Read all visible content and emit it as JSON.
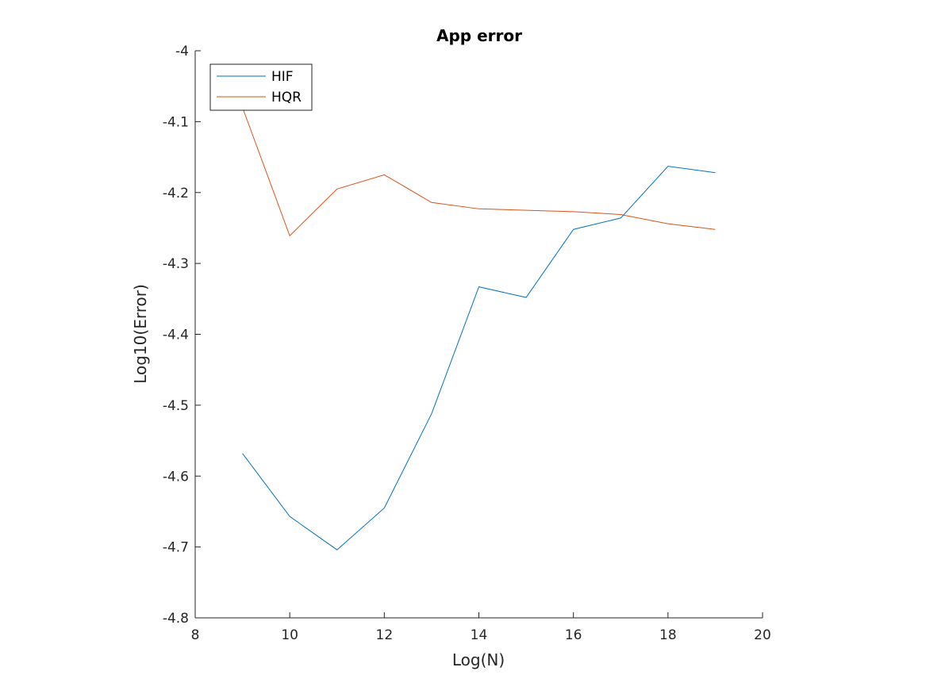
{
  "chart_data": {
    "type": "line",
    "title": "App error",
    "xlabel": "Log(N)",
    "ylabel": "Log10(Error)",
    "xlim": [
      8,
      20
    ],
    "ylim": [
      -4.8,
      -4
    ],
    "xticks": [
      8,
      10,
      12,
      14,
      16,
      18,
      20
    ],
    "xtick_labels": [
      "8",
      "10",
      "12",
      "14",
      "16",
      "18",
      "20"
    ],
    "yticks": [
      -4,
      -4.1,
      -4.2,
      -4.3,
      -4.4,
      -4.5,
      -4.6,
      -4.7,
      -4.8
    ],
    "ytick_labels": [
      "-4",
      "-4.1",
      "-4.2",
      "-4.3",
      "-4.4",
      "-4.5",
      "-4.6",
      "-4.7",
      "-4.8"
    ],
    "grid": false,
    "legend_position": "top-left",
    "x": [
      9,
      10,
      11,
      12,
      13,
      14,
      15,
      16,
      17,
      18,
      19
    ],
    "series": [
      {
        "name": "HIF",
        "color": "#0072BD",
        "values": [
          -4.568,
          -4.657,
          -4.704,
          -4.645,
          -4.512,
          -4.333,
          -4.348,
          -4.252,
          -4.236,
          -4.163,
          -4.172
        ]
      },
      {
        "name": "HQR",
        "color": "#D95319",
        "values": [
          -4.08,
          -4.261,
          -4.195,
          -4.175,
          -4.214,
          -4.223,
          -4.225,
          -4.227,
          -4.231,
          -4.244,
          -4.252
        ]
      }
    ]
  }
}
